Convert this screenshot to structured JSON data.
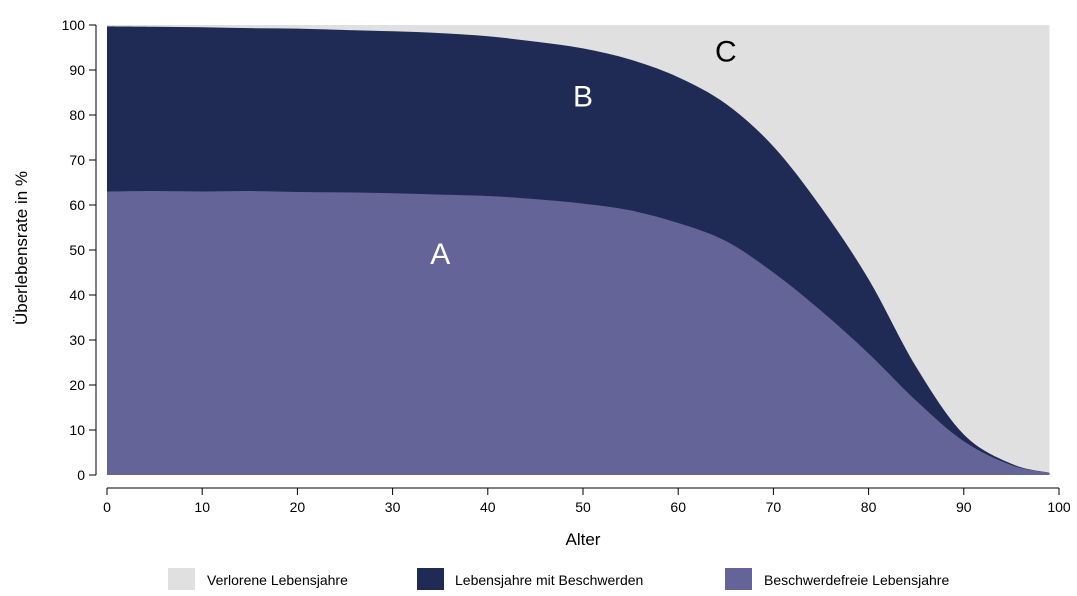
{
  "chart_data": {
    "type": "area",
    "title": "",
    "xlabel": "Alter",
    "ylabel": "Überlebensrate in %",
    "xlim": [
      0,
      100
    ],
    "ylim": [
      0,
      100
    ],
    "x_ticks": [
      0,
      10,
      20,
      30,
      40,
      50,
      60,
      70,
      80,
      90,
      100
    ],
    "y_ticks": [
      0,
      10,
      20,
      30,
      40,
      50,
      60,
      70,
      80,
      90,
      100
    ],
    "grid": false,
    "legend_position": "bottom",
    "x": [
      0,
      5,
      10,
      15,
      20,
      25,
      30,
      35,
      40,
      45,
      50,
      55,
      60,
      65,
      70,
      75,
      80,
      85,
      90,
      95,
      99
    ],
    "series": [
      {
        "name": "Verlorene Lebensjahre",
        "color": "#e0e0e0",
        "values": [
          100,
          100,
          100,
          100,
          100,
          100,
          100,
          100,
          100,
          100,
          100,
          100,
          100,
          100,
          100,
          100,
          100,
          100,
          100,
          100,
          100
        ]
      },
      {
        "name": "Lebensjahre mit Beschwerden",
        "color": "#1f2b55",
        "values": [
          99.7,
          99.6,
          99.5,
          99.3,
          99.2,
          98.9,
          98.6,
          98.2,
          97.5,
          96.3,
          94.8,
          92.3,
          88.4,
          82.5,
          73.0,
          59.5,
          43.5,
          24.0,
          9.0,
          2.5,
          0.5
        ]
      },
      {
        "name": "Beschwerdefreie Lebensjahre",
        "color": "#656498",
        "values": [
          63.0,
          63.1,
          63.0,
          63.1,
          62.9,
          62.8,
          62.6,
          62.3,
          62.0,
          61.3,
          60.3,
          58.8,
          56.0,
          52.0,
          45.0,
          36.5,
          27.0,
          16.5,
          7.5,
          2.2,
          0.5
        ]
      }
    ],
    "annotations": [
      {
        "text": "A",
        "x": 35,
        "y": 49
      },
      {
        "text": "B",
        "x": 50,
        "y": 84
      },
      {
        "text": "C",
        "x": 65,
        "y": 94
      }
    ]
  }
}
